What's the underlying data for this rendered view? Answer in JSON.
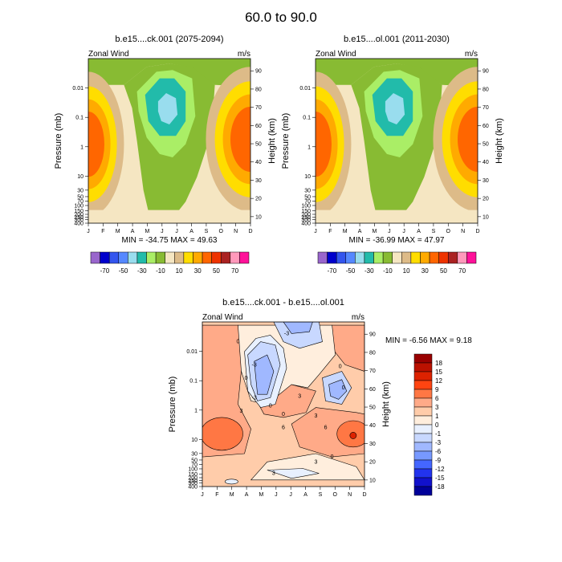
{
  "figure": {
    "title": "60.0 to  90.0"
  },
  "chart_data": [
    {
      "type": "heatmap",
      "title": "b.e15....ck.001 (2075-2094)",
      "left_string": "Zonal Wind",
      "right_string": "m/s",
      "xlabel": "",
      "ylabel": "Pressure (mb)",
      "ylabel_right": "Height (km)",
      "x_ticks": [
        "J",
        "F",
        "M",
        "A",
        "M",
        "J",
        "J",
        "A",
        "S",
        "O",
        "N",
        "D"
      ],
      "y_ticks": [
        "0.01",
        "0.1",
        "1",
        "10",
        "30",
        "50",
        "70",
        "100",
        "150",
        "200",
        "250",
        "300",
        "400"
      ],
      "y_ticks_right": [
        "90",
        "80",
        "70",
        "60",
        "50",
        "40",
        "30",
        "20",
        "10"
      ],
      "y_scale": "log",
      "ylim": [
        400,
        0.001
      ],
      "stats": "MIN = -34.75  MAX =  49.63",
      "min": -34.75,
      "max": 49.63,
      "colorbar": {
        "labels": [
          "-70",
          "-50",
          "-30",
          "-10",
          "10",
          "30",
          "50",
          "70"
        ],
        "colors": [
          "#9966cc",
          "#0000cc",
          "#3355ee",
          "#5588ff",
          "#99ddee",
          "#22bbaa",
          "#aaee66",
          "#88bb33",
          "#f5e6c2",
          "#ddbb88",
          "#ffdd00",
          "#ffaa00",
          "#ff6600",
          "#ee3300",
          "#aa2222",
          "#ff99bb",
          "#ff1199"
        ]
      }
    },
    {
      "type": "heatmap",
      "title": "b.e15....ol.001 (2011-2030)",
      "left_string": "Zonal Wind",
      "right_string": "m/s",
      "xlabel": "",
      "ylabel": "Pressure (mb)",
      "ylabel_right": "Height (km)",
      "x_ticks": [
        "J",
        "F",
        "M",
        "A",
        "M",
        "J",
        "J",
        "A",
        "S",
        "O",
        "N",
        "D"
      ],
      "y_ticks": [
        "0.01",
        "0.1",
        "1",
        "10",
        "30",
        "50",
        "70",
        "100",
        "150",
        "200",
        "250",
        "300",
        "400"
      ],
      "y_ticks_right": [
        "90",
        "80",
        "70",
        "60",
        "50",
        "40",
        "30",
        "20",
        "10"
      ],
      "y_scale": "log",
      "ylim": [
        400,
        0.001
      ],
      "stats": "MIN = -36.99  MAX =  47.97",
      "min": -36.99,
      "max": 47.97,
      "colorbar": {
        "labels": [
          "-70",
          "-50",
          "-30",
          "-10",
          "10",
          "30",
          "50",
          "70"
        ],
        "colors": [
          "#9966cc",
          "#0000cc",
          "#3355ee",
          "#5588ff",
          "#99ddee",
          "#22bbaa",
          "#aaee66",
          "#88bb33",
          "#f5e6c2",
          "#ddbb88",
          "#ffdd00",
          "#ffaa00",
          "#ff6600",
          "#ee3300",
          "#aa2222",
          "#ff99bb",
          "#ff1199"
        ]
      }
    },
    {
      "type": "heatmap",
      "title": "b.e15....ck.001 - b.e15....ol.001",
      "left_string": "Zonal Wind",
      "right_string": "m/s",
      "xlabel": "",
      "ylabel": "Pressure (mb)",
      "ylabel_right": "Height (km)",
      "x_ticks": [
        "J",
        "F",
        "M",
        "A",
        "M",
        "J",
        "J",
        "A",
        "S",
        "O",
        "N",
        "D"
      ],
      "y_ticks": [
        "0.01",
        "0.1",
        "1",
        "10",
        "30",
        "50",
        "70",
        "100",
        "150",
        "200",
        "250",
        "300",
        "400"
      ],
      "y_ticks_right": [
        "90",
        "80",
        "70",
        "60",
        "50",
        "40",
        "30",
        "20",
        "10"
      ],
      "y_scale": "log",
      "ylim": [
        400,
        0.001
      ],
      "stats": "MIN =  -6.56  MAX =   9.18",
      "min": -6.56,
      "max": 9.18,
      "contour_labels": [
        "0",
        "0",
        "3",
        "-3",
        "-3",
        "0",
        "3",
        "0",
        "3",
        "-3",
        "6",
        "3",
        "0",
        "6",
        "0",
        "3",
        "0"
      ],
      "colorbar": {
        "labels": [
          "18",
          "15",
          "12",
          "9",
          "6",
          "3",
          "1",
          "0",
          "-1",
          "-3",
          "-6",
          "-9",
          "-12",
          "-15",
          "-18"
        ],
        "colors": [
          "#990000",
          "#bb1100",
          "#dd2200",
          "#ff4411",
          "#ff7744",
          "#ffaa88",
          "#ffccaa",
          "#ffeedd",
          "#e8f0ff",
          "#c8d8ff",
          "#a0b8ff",
          "#7799ff",
          "#4466ff",
          "#2233ee",
          "#1111cc",
          "#000099"
        ]
      }
    }
  ]
}
